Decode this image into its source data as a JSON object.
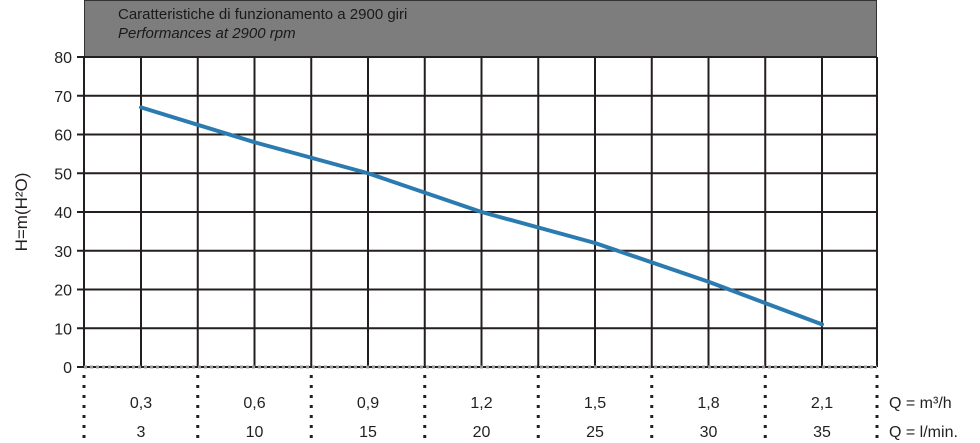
{
  "header": {
    "title_it": "Caratteristiche di funzionamento a 2900 giri",
    "title_en": "Performances at 2900 rpm"
  },
  "chart_data": {
    "type": "line",
    "title": "Caratteristiche di funzionamento a 2900 giri",
    "subtitle": "Performances at 2900 rpm",
    "ylabel": "H=m(H²O)",
    "ylim": [
      0,
      80
    ],
    "yticks": [
      "0",
      "10",
      "20",
      "30",
      "40",
      "50",
      "60",
      "70",
      "80"
    ],
    "x_axes": [
      {
        "label": "Q = m³/h",
        "ticks": [
          "0,3",
          "0,6",
          "0,9",
          "1,2",
          "1,5",
          "1,8",
          "2,1"
        ]
      },
      {
        "label": "Q = l/min.",
        "ticks": [
          "3",
          "10",
          "15",
          "20",
          "25",
          "30",
          "35"
        ]
      }
    ],
    "xlim": [
      0.3,
      2.1
    ],
    "grid": true,
    "series": [
      {
        "color": "#2b7bb0",
        "x": [
          0.3,
          0.6,
          0.9,
          1.2,
          1.5,
          1.8,
          2.1
        ],
        "y": [
          67,
          58,
          50,
          40,
          32,
          22,
          11
        ]
      }
    ]
  }
}
